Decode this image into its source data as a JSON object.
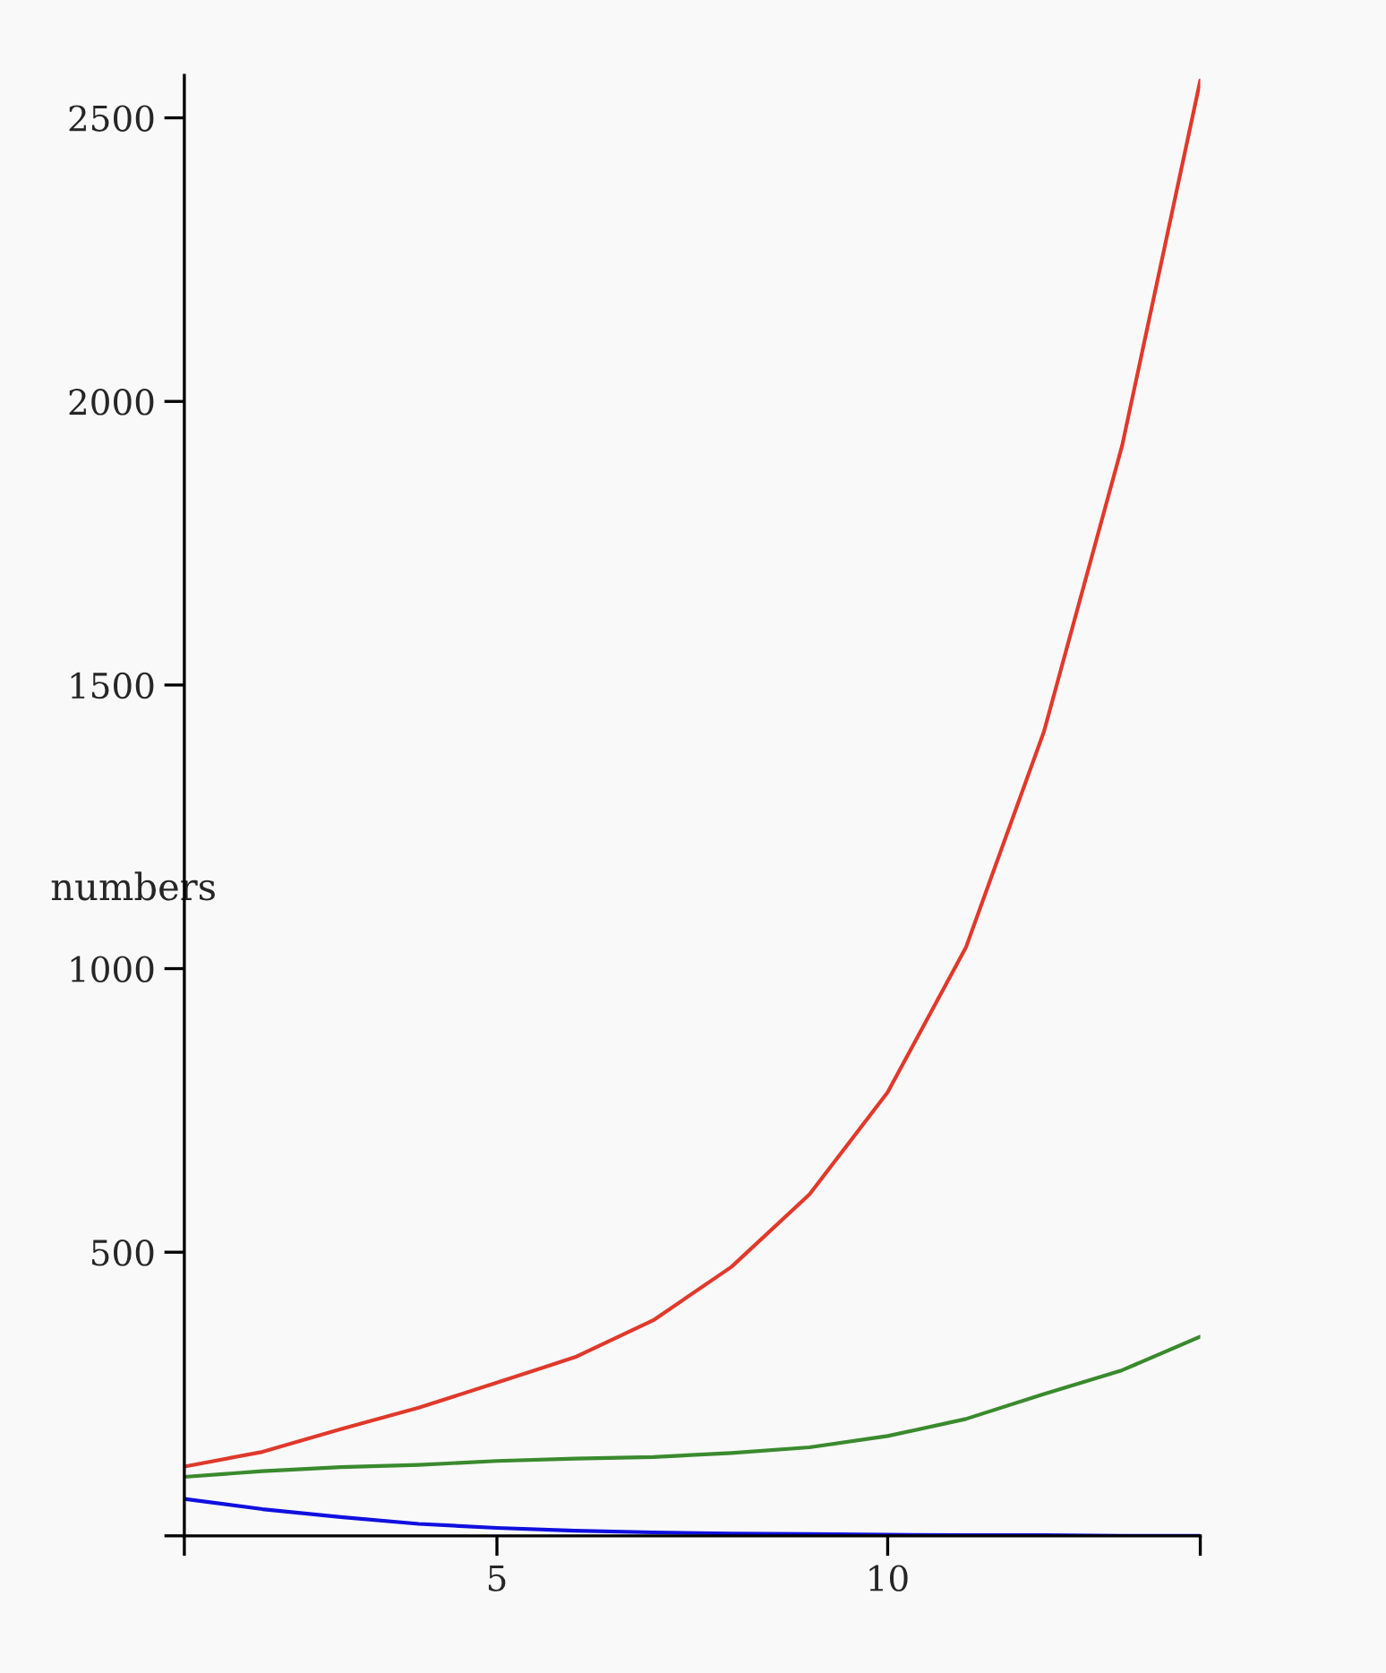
{
  "chart_data": {
    "type": "line",
    "ylabel": "numbers",
    "x": [
      1,
      2,
      3,
      4,
      5,
      6,
      7,
      8,
      9,
      10,
      11,
      12,
      13,
      14
    ],
    "series": [
      {
        "color": "#e0392b",
        "values": [
          122,
          148,
          188,
          226,
          270,
          315,
          380,
          474,
          602,
          782,
          1037,
          1418,
          1922,
          2566
        ]
      },
      {
        "color": "#3a8a2e",
        "values": [
          104,
          114,
          121,
          125,
          132,
          136,
          139,
          146,
          156,
          176,
          206,
          250,
          292,
          351
        ]
      },
      {
        "color": "#1010e0",
        "values": [
          65,
          47,
          33,
          21,
          14,
          9,
          6,
          4,
          3,
          2,
          1,
          1,
          0,
          0
        ]
      }
    ],
    "xlim": [
      1,
      14
    ],
    "xticks": [
      {
        "value": 1,
        "label": null
      },
      5,
      10,
      {
        "value": 14,
        "label": null
      }
    ],
    "ylim": [
      0,
      2575
    ],
    "yticks": [
      {
        "value": 0,
        "label": null
      },
      500,
      1000,
      1500,
      2000,
      2500
    ],
    "grid": false,
    "legend": false,
    "marker": "none",
    "line_style": "solid"
  }
}
